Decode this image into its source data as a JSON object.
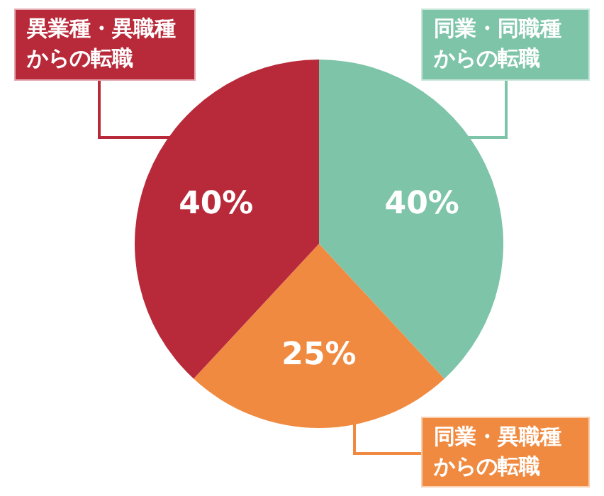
{
  "chart_data": {
    "type": "pie",
    "categories": [
      "同業・同職種からの転職",
      "同業・異職種からの転職",
      "異業種・異職種からの転職"
    ],
    "values": [
      40,
      25,
      40
    ],
    "colors": [
      "#7dc4a8",
      "#f08a40",
      "#b82a3a"
    ],
    "value_labels": [
      "40%",
      "25%",
      "40%"
    ],
    "legend": false
  }
}
